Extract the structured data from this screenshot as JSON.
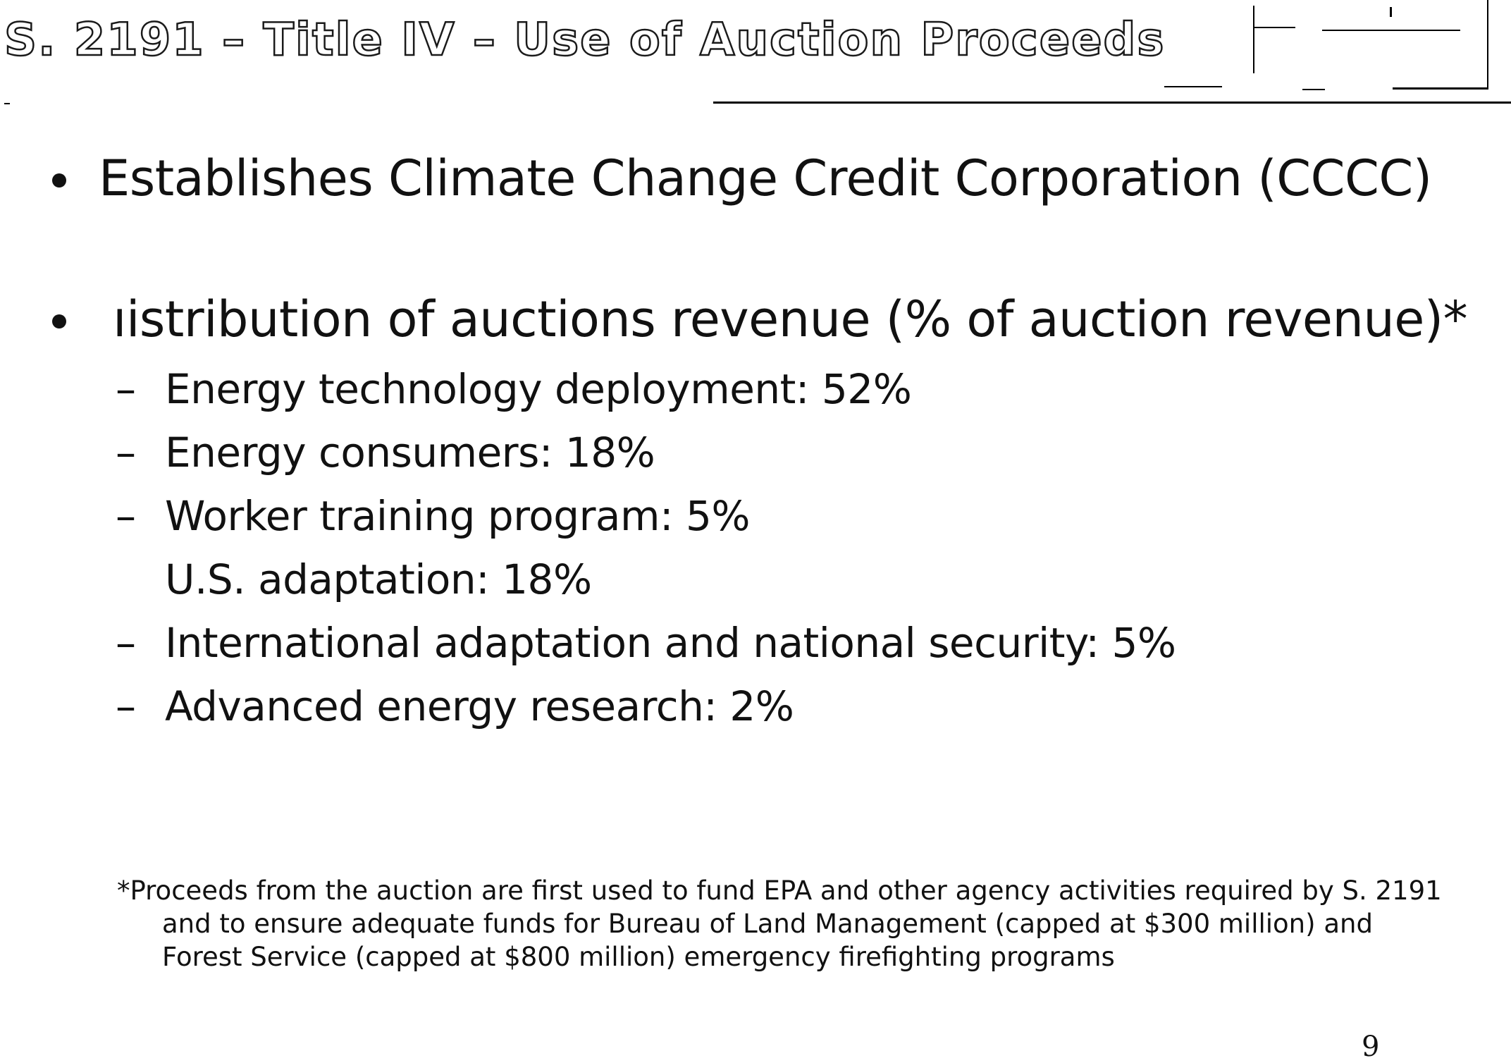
{
  "slide": {
    "title": "S. 2191 – Title IV – Use of Auction Proceeds",
    "bullets": [
      {
        "text": "Establishes Climate Change Credit Corporation (CCCC)"
      },
      {
        "text": "ıistribution of auctions revenue (% of auction revenue)*"
      }
    ],
    "sub_items": [
      {
        "dash": "–",
        "text": "Energy technology deployment: 52%"
      },
      {
        "dash": "–",
        "text": "Energy consumers: 18%"
      },
      {
        "dash": "–",
        "text": "Worker training program: 5%"
      },
      {
        "dash": "",
        "text": "U.S. adaptation: 18%"
      },
      {
        "dash": "–",
        "text": "International adaptation and national security: 5%"
      },
      {
        "dash": "–",
        "text": "Advanced energy research: 2%"
      }
    ],
    "footnote": {
      "line1": "*Proceeds from the auction are first used to fund EPA and other agency activities required by S. 2191",
      "line2": "and to ensure adequate funds for Bureau of Land Management (capped at $300 million) and",
      "line3": "Forest Service (capped at $800 million) emergency firefighting programs"
    },
    "page_number": "9"
  }
}
